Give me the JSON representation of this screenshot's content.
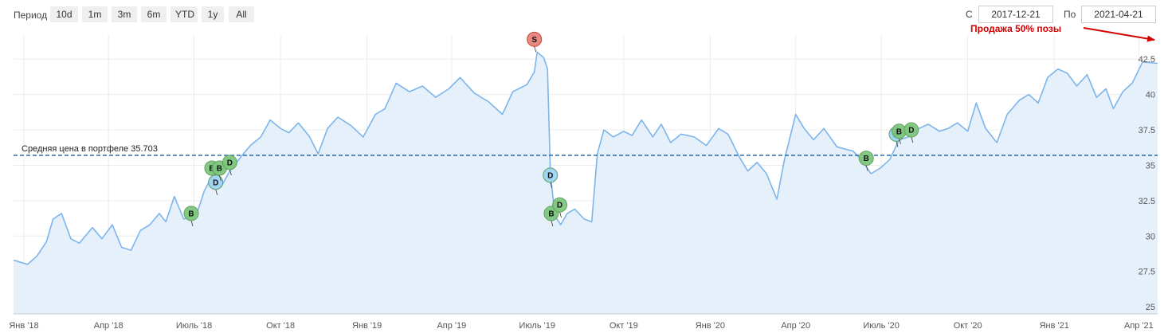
{
  "toolbar": {
    "period_label": "Период",
    "ranges": [
      "10d",
      "1m",
      "3m",
      "6m",
      "YTD",
      "1y",
      "All"
    ],
    "from_label": "С",
    "from_value": "2017-12-21",
    "to_label": "По",
    "to_value": "2021-04-21"
  },
  "colors": {
    "line": "#7cb5ec",
    "area": "#e6f0fa",
    "avg_line": "#1f6fb5",
    "buy": "#7dc77d",
    "div": "#9fd3f5",
    "sell": "#e8827a",
    "annotation": "#d40000"
  },
  "chart_data": {
    "type": "area",
    "x_start": "2017-12-21",
    "x_end": "2021-04-21",
    "ylim": [
      24.5,
      44.2
    ],
    "y_ticks": [
      "25",
      "27.5",
      "30",
      "32.5",
      "35",
      "37.5",
      "40",
      "42.5"
    ],
    "x_ticks": [
      {
        "date": "2018-01-01",
        "label": "Янв '18"
      },
      {
        "date": "2018-04-01",
        "label": "Апр '18"
      },
      {
        "date": "2018-07-01",
        "label": "Июль '18"
      },
      {
        "date": "2018-10-01",
        "label": "Окт '18"
      },
      {
        "date": "2019-01-01",
        "label": "Янв '19"
      },
      {
        "date": "2019-04-01",
        "label": "Апр '19"
      },
      {
        "date": "2019-07-01",
        "label": "Июль '19"
      },
      {
        "date": "2019-10-01",
        "label": "Окт '19"
      },
      {
        "date": "2020-01-01",
        "label": "Янв '20"
      },
      {
        "date": "2020-04-01",
        "label": "Апр '20"
      },
      {
        "date": "2020-07-01",
        "label": "Июль '20"
      },
      {
        "date": "2020-10-01",
        "label": "Окт '20"
      },
      {
        "date": "2021-01-01",
        "label": "Янв '21"
      },
      {
        "date": "2021-04-01",
        "label": "Апр '21"
      }
    ],
    "grid": true,
    "average_line": {
      "value": 35.703,
      "label": "Средняя цена в портфеле 35.703"
    },
    "series": [
      {
        "points": [
          [
            "2017-12-21",
            28.3
          ],
          [
            "2018-01-05",
            28.0
          ],
          [
            "2018-01-15",
            28.6
          ],
          [
            "2018-01-25",
            29.6
          ],
          [
            "2018-02-01",
            31.2
          ],
          [
            "2018-02-10",
            31.6
          ],
          [
            "2018-02-20",
            29.8
          ],
          [
            "2018-03-01",
            29.5
          ],
          [
            "2018-03-15",
            30.6
          ],
          [
            "2018-03-25",
            29.8
          ],
          [
            "2018-04-05",
            30.8
          ],
          [
            "2018-04-15",
            29.2
          ],
          [
            "2018-04-25",
            29.0
          ],
          [
            "2018-05-05",
            30.4
          ],
          [
            "2018-05-15",
            30.8
          ],
          [
            "2018-05-25",
            31.6
          ],
          [
            "2018-06-01",
            31.0
          ],
          [
            "2018-06-10",
            32.8
          ],
          [
            "2018-06-20",
            31.2
          ],
          [
            "2018-06-29",
            31.4
          ],
          [
            "2018-07-05",
            31.8
          ],
          [
            "2018-07-12",
            33.2
          ],
          [
            "2018-07-20",
            34.2
          ],
          [
            "2018-07-30",
            33.5
          ],
          [
            "2018-08-08",
            34.6
          ],
          [
            "2018-08-20",
            35.6
          ],
          [
            "2018-08-30",
            36.4
          ],
          [
            "2018-09-10",
            37.0
          ],
          [
            "2018-09-20",
            38.2
          ],
          [
            "2018-10-01",
            37.6
          ],
          [
            "2018-10-10",
            37.3
          ],
          [
            "2018-10-20",
            38.0
          ],
          [
            "2018-11-01",
            37.0
          ],
          [
            "2018-11-10",
            35.8
          ],
          [
            "2018-11-20",
            37.6
          ],
          [
            "2018-12-01",
            38.4
          ],
          [
            "2018-12-15",
            37.8
          ],
          [
            "2018-12-28",
            37.0
          ],
          [
            "2019-01-10",
            38.6
          ],
          [
            "2019-01-20",
            39.0
          ],
          [
            "2019-02-01",
            40.8
          ],
          [
            "2019-02-15",
            40.2
          ],
          [
            "2019-03-01",
            40.6
          ],
          [
            "2019-03-15",
            39.8
          ],
          [
            "2019-03-29",
            40.4
          ],
          [
            "2019-04-10",
            41.2
          ],
          [
            "2019-04-25",
            40.1
          ],
          [
            "2019-05-10",
            39.5
          ],
          [
            "2019-05-25",
            38.6
          ],
          [
            "2019-06-05",
            40.2
          ],
          [
            "2019-06-20",
            40.7
          ],
          [
            "2019-06-28",
            41.6
          ],
          [
            "2019-07-01",
            43.0
          ],
          [
            "2019-07-08",
            42.6
          ],
          [
            "2019-07-12",
            41.8
          ],
          [
            "2019-07-15",
            34.4
          ],
          [
            "2019-07-20",
            31.4
          ],
          [
            "2019-07-26",
            30.8
          ],
          [
            "2019-08-02",
            31.6
          ],
          [
            "2019-08-10",
            31.9
          ],
          [
            "2019-08-20",
            31.2
          ],
          [
            "2019-08-28",
            31.0
          ],
          [
            "2019-09-03",
            35.8
          ],
          [
            "2019-09-10",
            37.5
          ],
          [
            "2019-09-20",
            37.0
          ],
          [
            "2019-10-01",
            37.4
          ],
          [
            "2019-10-10",
            37.1
          ],
          [
            "2019-10-20",
            38.2
          ],
          [
            "2019-11-01",
            37.0
          ],
          [
            "2019-11-10",
            37.9
          ],
          [
            "2019-11-20",
            36.6
          ],
          [
            "2019-12-01",
            37.2
          ],
          [
            "2019-12-15",
            37.0
          ],
          [
            "2019-12-28",
            36.4
          ],
          [
            "2020-01-10",
            37.6
          ],
          [
            "2020-01-20",
            37.2
          ],
          [
            "2020-02-01",
            35.6
          ],
          [
            "2020-02-10",
            34.6
          ],
          [
            "2020-02-20",
            35.2
          ],
          [
            "2020-03-01",
            34.4
          ],
          [
            "2020-03-12",
            32.6
          ],
          [
            "2020-03-20",
            35.4
          ],
          [
            "2020-04-01",
            38.6
          ],
          [
            "2020-04-10",
            37.6
          ],
          [
            "2020-04-20",
            36.8
          ],
          [
            "2020-05-01",
            37.6
          ],
          [
            "2020-05-15",
            36.3
          ],
          [
            "2020-06-01",
            36.0
          ],
          [
            "2020-06-10",
            35.4
          ],
          [
            "2020-06-20",
            34.4
          ],
          [
            "2020-06-30",
            34.8
          ],
          [
            "2020-07-10",
            35.4
          ],
          [
            "2020-07-20",
            36.8
          ],
          [
            "2020-07-30",
            37.0
          ],
          [
            "2020-08-10",
            37.6
          ],
          [
            "2020-08-20",
            37.9
          ],
          [
            "2020-09-01",
            37.4
          ],
          [
            "2020-09-10",
            37.6
          ],
          [
            "2020-09-20",
            38.0
          ],
          [
            "2020-10-01",
            37.4
          ],
          [
            "2020-10-10",
            39.4
          ],
          [
            "2020-10-20",
            37.6
          ],
          [
            "2020-11-01",
            36.6
          ],
          [
            "2020-11-12",
            38.6
          ],
          [
            "2020-11-25",
            39.6
          ],
          [
            "2020-12-05",
            40.0
          ],
          [
            "2020-12-15",
            39.4
          ],
          [
            "2020-12-25",
            41.2
          ],
          [
            "2021-01-05",
            41.8
          ],
          [
            "2021-01-15",
            41.5
          ],
          [
            "2021-01-25",
            40.6
          ],
          [
            "2021-02-05",
            41.4
          ],
          [
            "2021-02-15",
            39.8
          ],
          [
            "2021-02-25",
            40.4
          ],
          [
            "2021-03-05",
            39.0
          ],
          [
            "2021-03-15",
            40.2
          ],
          [
            "2021-03-25",
            40.8
          ],
          [
            "2021-04-05",
            42.3
          ],
          [
            "2021-04-21",
            42.2
          ]
        ]
      }
    ],
    "markers": [
      {
        "label": "B",
        "kind": "buy",
        "date": "2018-06-28",
        "value": 31.6
      },
      {
        "label": "B",
        "kind": "buy",
        "date": "2018-07-20",
        "value": 34.8
      },
      {
        "label": "D",
        "kind": "div",
        "date": "2018-07-24",
        "value": 33.8
      },
      {
        "label": "B",
        "kind": "buy",
        "date": "2018-07-28",
        "value": 34.8
      },
      {
        "label": "D",
        "kind": "buy",
        "date": "2018-08-08",
        "value": 35.2
      },
      {
        "label": "S",
        "kind": "sell",
        "date": "2019-06-28",
        "value": 43.9
      },
      {
        "label": "D",
        "kind": "div",
        "date": "2019-07-15",
        "value": 34.3
      },
      {
        "label": "B",
        "kind": "buy",
        "date": "2019-07-16",
        "value": 31.6
      },
      {
        "label": "D",
        "kind": "buy",
        "date": "2019-07-25",
        "value": 32.2
      },
      {
        "label": "B",
        "kind": "buy",
        "date": "2020-06-15",
        "value": 35.5
      },
      {
        "label": "D",
        "kind": "div",
        "date": "2020-07-17",
        "value": 37.2
      },
      {
        "label": "B",
        "kind": "buy",
        "date": "2020-07-20",
        "value": 37.4
      },
      {
        "label": "D",
        "kind": "buy",
        "date": "2020-08-02",
        "value": 37.5
      }
    ],
    "annotation": {
      "text": "Продажа 50% позы",
      "date": "2021-04-21",
      "value": 44.2
    }
  }
}
